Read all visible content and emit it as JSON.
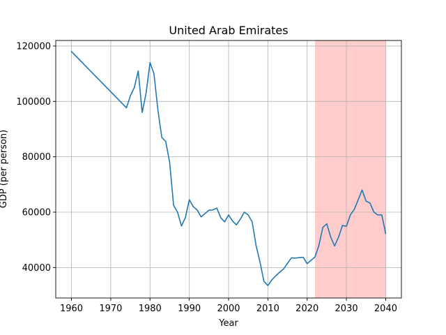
{
  "chart_data": {
    "type": "line",
    "title": "United Arab Emirates",
    "xlabel": "Year",
    "ylabel": "GDP (per person)",
    "xlim": [
      1956,
      2044
    ],
    "ylim": [
      29000,
      122000
    ],
    "xticks": [
      1960,
      1970,
      1980,
      1990,
      2000,
      2010,
      2020,
      2030,
      2040
    ],
    "yticks": [
      40000,
      60000,
      80000,
      100000,
      120000
    ],
    "xtick_labels": [
      "1960",
      "1970",
      "1980",
      "1990",
      "2000",
      "2010",
      "2020",
      "2030",
      "2040"
    ],
    "ytick_labels": [
      "40000",
      "60000",
      "80000",
      "100000",
      "120000"
    ],
    "grid": true,
    "line_color": "#1f77b4",
    "highlight_span": {
      "x_start": 2022,
      "x_end": 2040,
      "color": "#ffcccc"
    },
    "series": [
      {
        "x": [
          1960,
          1974,
          1975,
          1976,
          1977,
          1978,
          1979,
          1980,
          1981,
          1982,
          1983,
          1984,
          1985,
          1986,
          1987,
          1988,
          1989,
          1990,
          1991,
          1992,
          1993,
          1994,
          1995,
          1996,
          1997,
          1998,
          1999,
          2000,
          2001,
          2002,
          2003,
          2004,
          2005,
          2006,
          2007,
          2008,
          2009,
          2010,
          2011,
          2012,
          2013,
          2014,
          2015,
          2016,
          2017,
          2018,
          2019,
          2020,
          2021,
          2022,
          2023,
          2024,
          2025,
          2026,
          2027,
          2028,
          2029,
          2030,
          2031,
          2032,
          2033,
          2034,
          2035,
          2036,
          2037,
          2038,
          2039,
          2040
        ],
        "values": [
          118000,
          97700,
          102000,
          105000,
          111000,
          96000,
          103000,
          114000,
          110000,
          97000,
          87000,
          85500,
          78000,
          62500,
          60000,
          55000,
          58000,
          64500,
          62000,
          60800,
          58300,
          59500,
          60700,
          60800,
          61500,
          58000,
          56500,
          59000,
          56800,
          55400,
          57500,
          60000,
          59000,
          56500,
          48000,
          42000,
          35000,
          33500,
          35500,
          37000,
          38300,
          39500,
          41500,
          43500,
          43400,
          43600,
          43700,
          41400,
          42600,
          43800,
          48000,
          54500,
          55800,
          51000,
          47800,
          51000,
          55200,
          54900,
          59000,
          61000,
          64500,
          68000,
          64000,
          63300,
          60000,
          59000,
          59000,
          52300
        ]
      }
    ]
  }
}
